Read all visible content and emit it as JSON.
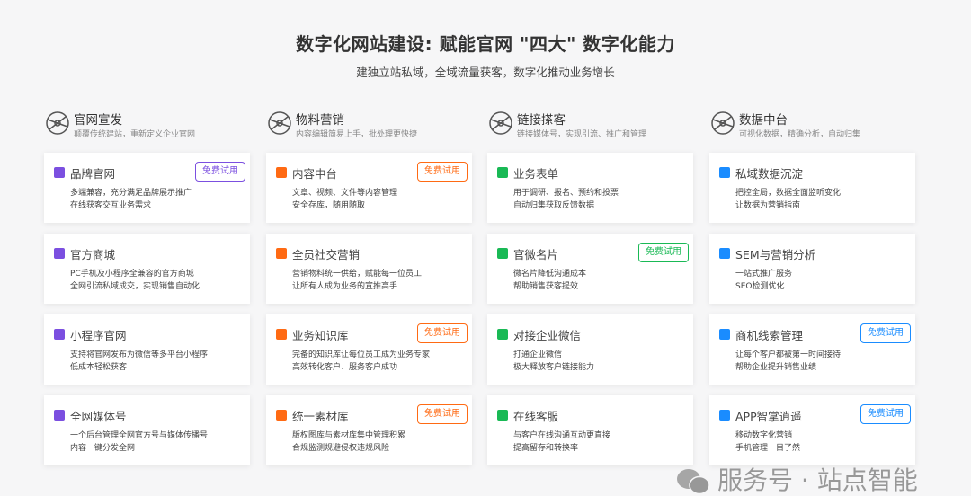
{
  "header": {
    "title": "数字化网站建设: 赋能官网 \"四大\" 数字化能力",
    "subtitle": "建独立站私域，全域流量获客，数字化推动业务增长"
  },
  "trial_label": "免费试用",
  "columns": [
    {
      "name": "官网宣发",
      "desc": "颠覆传统建站，重新定义企业官网",
      "icon": "globe-network-icon",
      "color": "#7b4fe0",
      "cards": [
        {
          "name": "品牌官网",
          "l1": "多端兼容，充分满足品牌展示推广",
          "l2": "在线获客交互业务需求",
          "trial": true,
          "icon": "monitor-icon"
        },
        {
          "name": "官方商城",
          "l1": "PC手机及小程序全兼容的官方商城",
          "l2": "全网引流私域成交，实现销售自动化",
          "trial": false,
          "icon": "store-icon"
        },
        {
          "name": "小程序官网",
          "l1": "支持将官网发布为微信等多平台小程序",
          "l2": "低成本轻松获客",
          "trial": false,
          "icon": "mini-program-icon"
        },
        {
          "name": "全网媒体号",
          "l1": "一个后台管理全网官方号与媒体传播号",
          "l2": "内容一键分发全网",
          "trial": false,
          "icon": "megaphone-icon"
        }
      ]
    },
    {
      "name": "物料营销",
      "desc": "内容编辑简易上手，批处理更快捷",
      "icon": "atom-icon",
      "color": "#ff6a13",
      "cards": [
        {
          "name": "内容中台",
          "l1": "文章、视频、文件等内容管理",
          "l2": "安全存库，随用随取",
          "trial": true,
          "icon": "folder-icon"
        },
        {
          "name": "全员社交营销",
          "l1": "营销物料统一供给，赋能每一位员工",
          "l2": "让所有人成为业务的宣推高手",
          "trial": false,
          "icon": "target-icon"
        },
        {
          "name": "业务知识库",
          "l1": "完备的知识库让每位员工成为业务专家",
          "l2": "高效转化客户、服务客户成功",
          "trial": true,
          "icon": "book-icon"
        },
        {
          "name": "统一素材库",
          "l1": "版权图库与素材库集中管理积累",
          "l2": "合规监测规避侵权违规风险",
          "trial": true,
          "icon": "toolbox-icon"
        }
      ]
    },
    {
      "name": "链接搽客",
      "desc": "链接媒体号，实现引流、推广和管理",
      "icon": "link-chain-icon",
      "color": "#19b955",
      "cards": [
        {
          "name": "业务表单",
          "l1": "用于调研、报名、预约和投票",
          "l2": "自动归集获取反馈数据",
          "trial": false,
          "icon": "clipboard-icon"
        },
        {
          "name": "官微名片",
          "l1": "微名片降低沟通成本",
          "l2": "帮助销售获客提效",
          "trial": true,
          "icon": "card-circle-icon"
        },
        {
          "name": "对接企业微信",
          "l1": "打通企业微信",
          "l2": "极大释放客户链接能力",
          "trial": false,
          "icon": "wecom-icon"
        },
        {
          "name": "在线客服",
          "l1": "与客户在线沟通互动更直接",
          "l2": "提高留存和转换率",
          "trial": false,
          "icon": "headset-icon"
        }
      ]
    },
    {
      "name": "数据中台",
      "desc": "可视化数据，精确分析，自动归集",
      "icon": "data-server-icon",
      "color": "#1a8cff",
      "cards": [
        {
          "name": "私域数据沉淀",
          "l1": "把控全局，数据全面监听变化",
          "l2": "让数据为营销指南",
          "trial": false,
          "icon": "refresh-icon"
        },
        {
          "name": "SEM与营销分析",
          "l1": "一站式推广服务",
          "l2": "SEO检测优化",
          "trial": false,
          "icon": "chat-bubble-icon"
        },
        {
          "name": "商机线索管理",
          "l1": "让每个客户都被第一时间接待",
          "l2": "帮助企业提升销售业绩",
          "trial": true,
          "icon": "user-icon"
        },
        {
          "name": "APP智掌逍遥",
          "l1": "移动数字化营销",
          "l2": "手机管理一目了然",
          "trial": true,
          "icon": "phone-icon"
        }
      ]
    }
  ],
  "watermark": "服务号 · 站点智能"
}
